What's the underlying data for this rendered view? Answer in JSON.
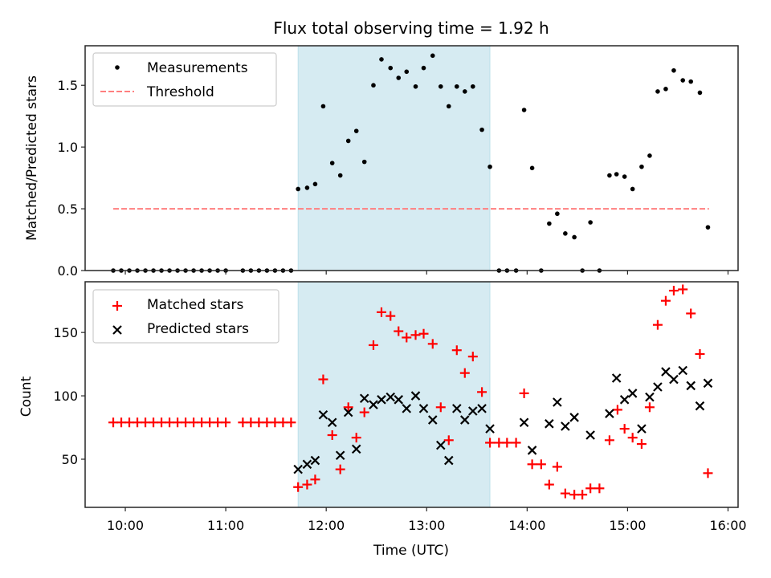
{
  "chart_data": [
    {
      "type": "scatter",
      "panel": "top",
      "title": "Flux total observing time = 1.92 h",
      "xlabel": "",
      "ylabel": "Matched/Predicted stars",
      "xlim": [
        9.6,
        16.1
      ],
      "ylim": [
        0.0,
        1.82
      ],
      "yticks": [
        0.0,
        0.5,
        1.0,
        1.5
      ],
      "ytick_labels": [
        "0.0",
        "0.5",
        "1.0",
        "1.5"
      ],
      "xticks": [
        10,
        11,
        12,
        13,
        14,
        15,
        16
      ],
      "shaded_span": {
        "x_start": 11.72,
        "x_end": 13.63,
        "color": "#add8e6"
      },
      "legend": {
        "placement": "top-left",
        "entries": [
          "Measurements",
          "Threshold"
        ]
      },
      "threshold": {
        "name": "Threshold",
        "y": 0.5,
        "x_start": 9.88,
        "x_end": 15.81,
        "color": "#ff7f7f",
        "style": "dashed"
      },
      "series": [
        {
          "name": "Measurements",
          "marker": "dot",
          "color": "#000000",
          "points": [
            [
              9.88,
              0
            ],
            [
              9.96,
              0
            ],
            [
              10.04,
              0
            ],
            [
              10.12,
              0
            ],
            [
              10.2,
              0
            ],
            [
              10.28,
              0
            ],
            [
              10.36,
              0
            ],
            [
              10.44,
              0
            ],
            [
              10.52,
              0
            ],
            [
              10.6,
              0
            ],
            [
              10.68,
              0
            ],
            [
              10.76,
              0
            ],
            [
              10.84,
              0
            ],
            [
              10.92,
              0
            ],
            [
              11.0,
              0
            ],
            [
              11.17,
              0
            ],
            [
              11.25,
              0
            ],
            [
              11.33,
              0
            ],
            [
              11.41,
              0
            ],
            [
              11.49,
              0
            ],
            [
              11.57,
              0
            ],
            [
              11.65,
              0
            ],
            [
              11.72,
              0.66
            ],
            [
              11.81,
              0.67
            ],
            [
              11.89,
              0.7
            ],
            [
              11.97,
              1.33
            ],
            [
              12.06,
              0.87
            ],
            [
              12.14,
              0.77
            ],
            [
              12.22,
              1.05
            ],
            [
              12.3,
              1.13
            ],
            [
              12.38,
              0.88
            ],
            [
              12.47,
              1.5
            ],
            [
              12.55,
              1.71
            ],
            [
              12.64,
              1.64
            ],
            [
              12.72,
              1.56
            ],
            [
              12.8,
              1.61
            ],
            [
              12.89,
              1.49
            ],
            [
              12.97,
              1.64
            ],
            [
              13.06,
              1.74
            ],
            [
              13.14,
              1.49
            ],
            [
              13.22,
              1.33
            ],
            [
              13.3,
              1.49
            ],
            [
              13.38,
              1.45
            ],
            [
              13.46,
              1.49
            ],
            [
              13.55,
              1.14
            ],
            [
              13.63,
              0.84
            ],
            [
              13.72,
              0
            ],
            [
              13.8,
              0
            ],
            [
              13.89,
              0
            ],
            [
              13.97,
              1.3
            ],
            [
              14.05,
              0.83
            ],
            [
              14.14,
              0
            ],
            [
              14.22,
              0.38
            ],
            [
              14.3,
              0.46
            ],
            [
              14.38,
              0.3
            ],
            [
              14.47,
              0.27
            ],
            [
              14.55,
              0
            ],
            [
              14.63,
              0.39
            ],
            [
              14.72,
              0
            ],
            [
              14.82,
              0.77
            ],
            [
              14.89,
              0.78
            ],
            [
              14.97,
              0.76
            ],
            [
              15.05,
              0.66
            ],
            [
              15.14,
              0.84
            ],
            [
              15.22,
              0.93
            ],
            [
              15.3,
              1.45
            ],
            [
              15.38,
              1.47
            ],
            [
              15.46,
              1.62
            ],
            [
              15.55,
              1.54
            ],
            [
              15.63,
              1.53
            ],
            [
              15.72,
              1.44
            ],
            [
              15.8,
              0.35
            ]
          ]
        }
      ]
    },
    {
      "type": "scatter",
      "panel": "bottom",
      "title": "",
      "xlabel": "Time (UTC)",
      "ylabel": "Count",
      "xlim": [
        9.6,
        16.1
      ],
      "ylim": [
        12,
        190
      ],
      "yticks": [
        50,
        100,
        150
      ],
      "ytick_labels": [
        "50",
        "100",
        "150"
      ],
      "xticks": [
        10,
        11,
        12,
        13,
        14,
        15,
        16
      ],
      "xtick_labels": [
        "10:00",
        "11:00",
        "12:00",
        "13:00",
        "14:00",
        "15:00",
        "16:00"
      ],
      "shaded_span": {
        "x_start": 11.72,
        "x_end": 13.63,
        "color": "#add8e6"
      },
      "legend": {
        "placement": "top-left",
        "entries": [
          "Matched stars",
          "Predicted stars"
        ]
      },
      "series": [
        {
          "name": "Matched stars",
          "marker": "plus",
          "color": "#ff0000",
          "points": [
            [
              9.88,
              79
            ],
            [
              9.96,
              79
            ],
            [
              10.04,
              79
            ],
            [
              10.12,
              79
            ],
            [
              10.2,
              79
            ],
            [
              10.28,
              79
            ],
            [
              10.36,
              79
            ],
            [
              10.44,
              79
            ],
            [
              10.52,
              79
            ],
            [
              10.6,
              79
            ],
            [
              10.68,
              79
            ],
            [
              10.76,
              79
            ],
            [
              10.84,
              79
            ],
            [
              10.92,
              79
            ],
            [
              11.0,
              79
            ],
            [
              11.17,
              79
            ],
            [
              11.25,
              79
            ],
            [
              11.33,
              79
            ],
            [
              11.41,
              79
            ],
            [
              11.49,
              79
            ],
            [
              11.57,
              79
            ],
            [
              11.65,
              79
            ],
            [
              11.72,
              28
            ],
            [
              11.81,
              30
            ],
            [
              11.89,
              34
            ],
            [
              11.97,
              113
            ],
            [
              12.06,
              69
            ],
            [
              12.14,
              42
            ],
            [
              12.22,
              91
            ],
            [
              12.3,
              67
            ],
            [
              12.38,
              87
            ],
            [
              12.47,
              140
            ],
            [
              12.55,
              166
            ],
            [
              12.64,
              163
            ],
            [
              12.72,
              151
            ],
            [
              12.8,
              146
            ],
            [
              12.89,
              148
            ],
            [
              12.97,
              149
            ],
            [
              13.06,
              141
            ],
            [
              13.14,
              91
            ],
            [
              13.22,
              65
            ],
            [
              13.3,
              136
            ],
            [
              13.38,
              118
            ],
            [
              13.46,
              131
            ],
            [
              13.55,
              103
            ],
            [
              13.63,
              63
            ],
            [
              13.72,
              63
            ],
            [
              13.8,
              63
            ],
            [
              13.89,
              63
            ],
            [
              13.97,
              102
            ],
            [
              14.05,
              46
            ],
            [
              14.14,
              46
            ],
            [
              14.22,
              30
            ],
            [
              14.3,
              44
            ],
            [
              14.38,
              23
            ],
            [
              14.47,
              22
            ],
            [
              14.55,
              22
            ],
            [
              14.63,
              27
            ],
            [
              14.72,
              27
            ],
            [
              14.82,
              65
            ],
            [
              14.9,
              89
            ],
            [
              14.97,
              74
            ],
            [
              15.05,
              67
            ],
            [
              15.14,
              62
            ],
            [
              15.22,
              91
            ],
            [
              15.3,
              156
            ],
            [
              15.38,
              175
            ],
            [
              15.46,
              183
            ],
            [
              15.55,
              184
            ],
            [
              15.63,
              165
            ],
            [
              15.72,
              133
            ],
            [
              15.8,
              39
            ]
          ]
        },
        {
          "name": "Predicted stars",
          "marker": "x",
          "color": "#000000",
          "points": [
            [
              11.72,
              42
            ],
            [
              11.81,
              46
            ],
            [
              11.89,
              49
            ],
            [
              11.97,
              85
            ],
            [
              12.06,
              79
            ],
            [
              12.14,
              53
            ],
            [
              12.22,
              87
            ],
            [
              12.3,
              58
            ],
            [
              12.38,
              98
            ],
            [
              12.47,
              93
            ],
            [
              12.55,
              97
            ],
            [
              12.64,
              99
            ],
            [
              12.72,
              97
            ],
            [
              12.8,
              90
            ],
            [
              12.89,
              100
            ],
            [
              12.97,
              90
            ],
            [
              13.06,
              81
            ],
            [
              13.14,
              61
            ],
            [
              13.22,
              49
            ],
            [
              13.3,
              90
            ],
            [
              13.38,
              81
            ],
            [
              13.46,
              88
            ],
            [
              13.55,
              90
            ],
            [
              13.63,
              74
            ],
            [
              13.97,
              79
            ],
            [
              14.05,
              57
            ],
            [
              14.22,
              78
            ],
            [
              14.3,
              95
            ],
            [
              14.38,
              76
            ],
            [
              14.47,
              83
            ],
            [
              14.63,
              69
            ],
            [
              14.82,
              86
            ],
            [
              14.89,
              114
            ],
            [
              14.97,
              97
            ],
            [
              15.05,
              102
            ],
            [
              15.14,
              74
            ],
            [
              15.22,
              99
            ],
            [
              15.3,
              107
            ],
            [
              15.38,
              119
            ],
            [
              15.46,
              113
            ],
            [
              15.55,
              120
            ],
            [
              15.63,
              108
            ],
            [
              15.72,
              92
            ],
            [
              15.8,
              110
            ]
          ]
        }
      ]
    }
  ]
}
